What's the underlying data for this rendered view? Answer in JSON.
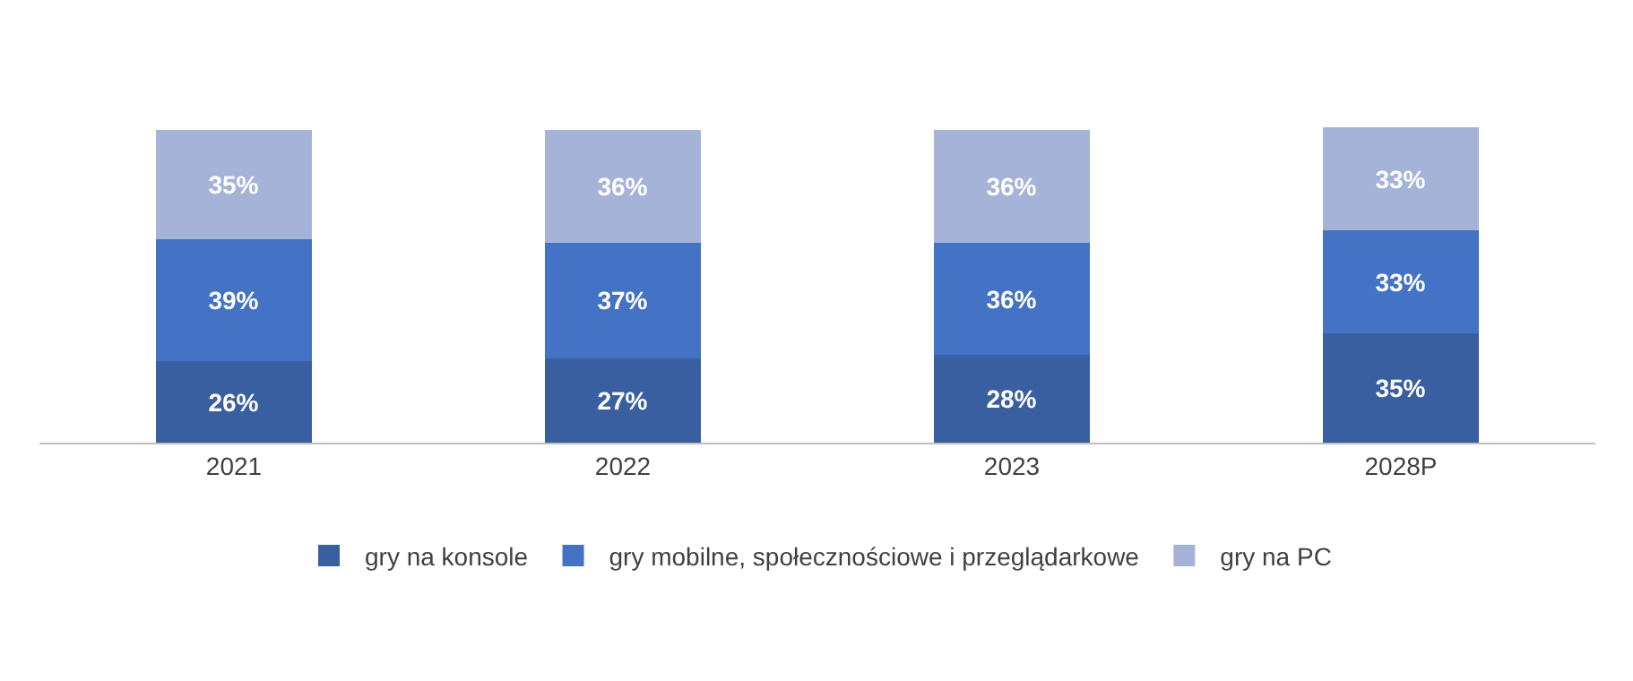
{
  "chart_data": {
    "type": "bar",
    "stacked": true,
    "categories": [
      "2021",
      "2022",
      "2023",
      "2028P"
    ],
    "series": [
      {
        "name": "gry na konsole",
        "color": "#3a5fa0",
        "values": [
          26,
          27,
          28,
          35
        ],
        "value_labels": [
          "26%",
          "27%",
          "28%",
          "35%"
        ]
      },
      {
        "name": "gry mobilne, społecznościowe i przeglądarkowe",
        "color": "#4472c4",
        "values": [
          39,
          37,
          36,
          33
        ],
        "value_labels": [
          "39%",
          "37%",
          "36%",
          "33%"
        ]
      },
      {
        "name": "gry na PC",
        "color": "#a5b3d9",
        "values": [
          35,
          36,
          36,
          33
        ],
        "value_labels": [
          "35%",
          "36%",
          "36%",
          "33%"
        ]
      }
    ],
    "legend": "bottom",
    "tick_labels": "x"
  }
}
